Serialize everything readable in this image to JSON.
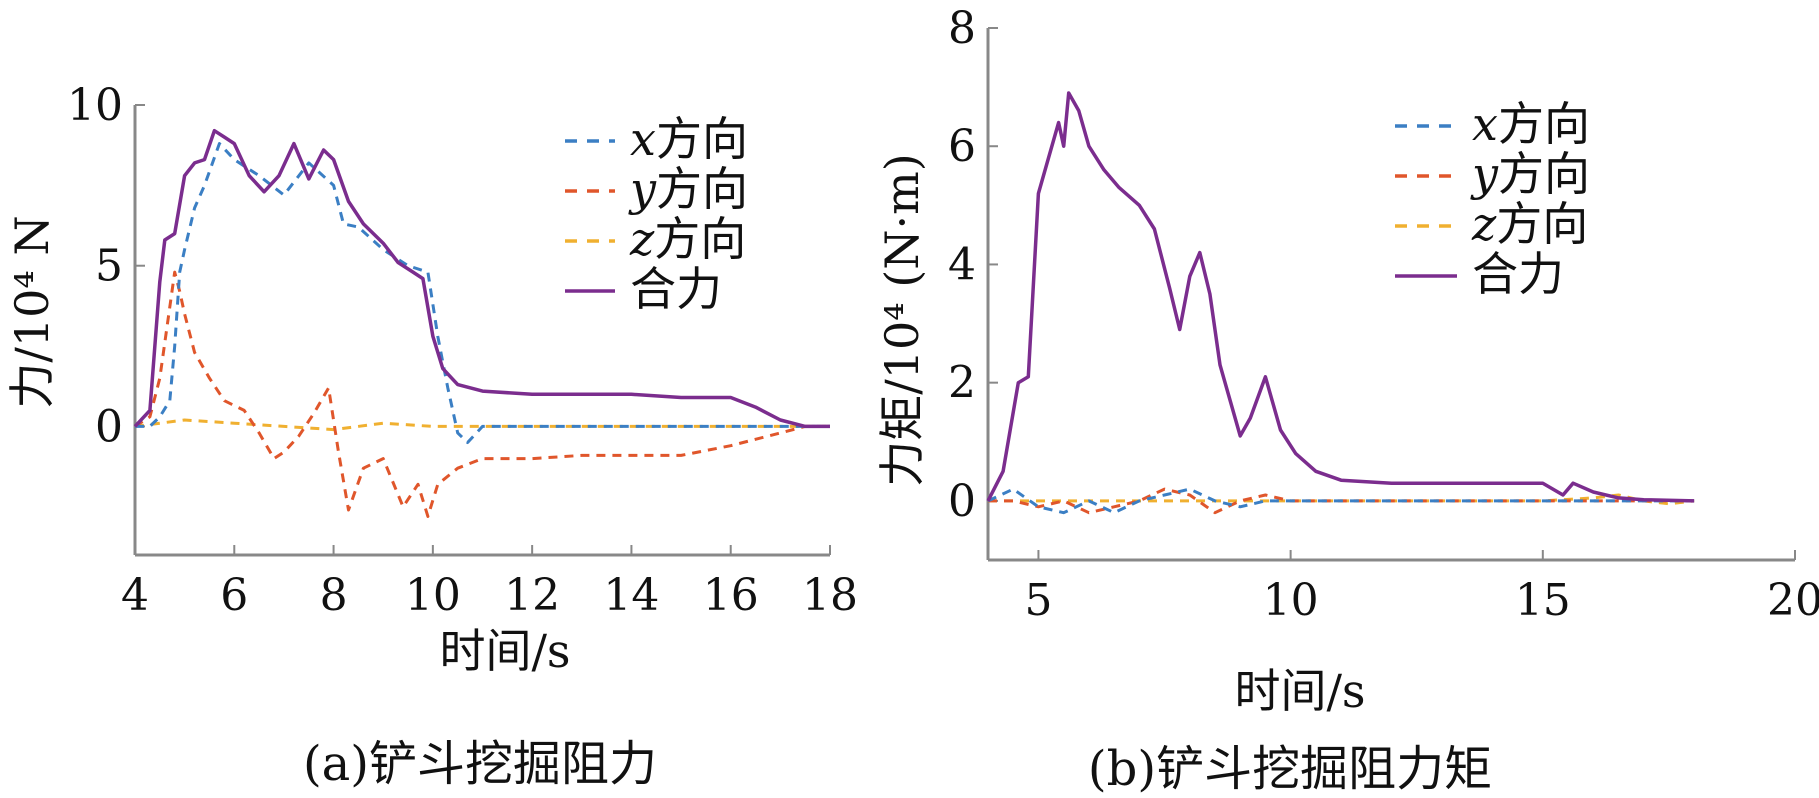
{
  "chart_data": [
    {
      "type": "line",
      "caption": "(a)铲斗挖掘阻力",
      "xlabel": "时间/s",
      "ylabel": "力/10⁴ N",
      "xlim": [
        4,
        18
      ],
      "ylim": [
        -4,
        10
      ],
      "xticks": [
        4,
        6,
        8,
        10,
        12,
        14,
        16,
        18
      ],
      "yticks": [
        0,
        5,
        10
      ],
      "grid": false,
      "legend_position": "top-right",
      "colors": {
        "x": "#3b7fc4",
        "y": "#e0562b",
        "z": "#f0b030",
        "total": "#7b2d8e"
      },
      "series": [
        {
          "name": "x方向",
          "style": "dashed",
          "x": [
            4,
            4.3,
            4.5,
            4.7,
            4.8,
            4.9,
            5.0,
            5.2,
            5.4,
            5.7,
            6.0,
            6.5,
            7.0,
            7.5,
            8.0,
            8.2,
            8.5,
            9.0,
            9.5,
            9.9,
            10.1,
            10.3,
            10.5,
            10.7,
            11,
            12,
            13,
            14,
            15,
            16,
            17,
            17.5,
            18
          ],
          "y": [
            0,
            0,
            0.3,
            0.8,
            2.5,
            4.8,
            5.5,
            6.8,
            7.5,
            8.8,
            8.3,
            7.8,
            7.2,
            8.2,
            7.5,
            6.3,
            6.2,
            5.5,
            5.0,
            4.8,
            2.8,
            1.2,
            -0.2,
            -0.5,
            0,
            0,
            0,
            0,
            0,
            0,
            0,
            0,
            0
          ]
        },
        {
          "name": "y方向",
          "style": "dashed",
          "x": [
            4,
            4.3,
            4.5,
            4.8,
            4.9,
            5.0,
            5.2,
            5.5,
            5.8,
            6.2,
            6.5,
            6.8,
            7.0,
            7.3,
            7.6,
            7.9,
            8.1,
            8.3,
            8.6,
            9.0,
            9.4,
            9.7,
            9.9,
            10.1,
            10.5,
            11,
            12,
            13,
            14,
            15,
            16,
            16.5,
            17,
            17.5,
            18
          ],
          "y": [
            0,
            0.3,
            1.5,
            4.8,
            4.2,
            3.5,
            2.3,
            1.5,
            0.8,
            0.5,
            -0.2,
            -1.0,
            -0.8,
            -0.3,
            0.4,
            1.2,
            -0.8,
            -2.6,
            -1.3,
            -1.0,
            -2.5,
            -1.8,
            -2.8,
            -1.8,
            -1.3,
            -1.0,
            -1.0,
            -0.9,
            -0.9,
            -0.9,
            -0.6,
            -0.4,
            -0.2,
            0,
            0
          ]
        },
        {
          "name": "z方向",
          "style": "dashed",
          "x": [
            4,
            4.5,
            5,
            6,
            7,
            8,
            9,
            10,
            11,
            12,
            13,
            14,
            15,
            16,
            17,
            17.5,
            18
          ],
          "y": [
            0,
            0.1,
            0.2,
            0.1,
            0.0,
            -0.1,
            0.1,
            0.0,
            0.0,
            0.0,
            0.0,
            0.0,
            0.0,
            0.0,
            0.0,
            0.0,
            0.0
          ]
        },
        {
          "name": "合力",
          "style": "solid",
          "x": [
            4,
            4.3,
            4.5,
            4.6,
            4.8,
            5.0,
            5.2,
            5.4,
            5.6,
            5.8,
            6.0,
            6.3,
            6.6,
            6.9,
            7.2,
            7.5,
            7.8,
            8.0,
            8.3,
            8.6,
            9.0,
            9.3,
            9.6,
            9.8,
            10.0,
            10.2,
            10.5,
            11,
            12,
            13,
            14,
            15,
            16,
            16.5,
            17,
            17.5,
            18
          ],
          "y": [
            0,
            0.5,
            4.5,
            5.8,
            6.0,
            7.8,
            8.2,
            8.3,
            9.2,
            9.0,
            8.8,
            7.8,
            7.3,
            7.8,
            8.8,
            7.7,
            8.6,
            8.3,
            7.0,
            6.3,
            5.7,
            5.1,
            4.8,
            4.6,
            2.8,
            1.8,
            1.3,
            1.1,
            1.0,
            1.0,
            1.0,
            0.9,
            0.9,
            0.6,
            0.2,
            0.0,
            0.0
          ]
        }
      ]
    },
    {
      "type": "line",
      "caption": "(b)铲斗挖掘阻力矩",
      "xlabel": "时间/s",
      "ylabel": "力矩/10⁴ (N·m)",
      "xlim": [
        4,
        20
      ],
      "ylim": [
        -1,
        8
      ],
      "xticks": [
        5,
        10,
        15,
        20
      ],
      "yticks": [
        0,
        2,
        4,
        6,
        8
      ],
      "grid": false,
      "legend_position": "top-right",
      "colors": {
        "x": "#3b7fc4",
        "y": "#e0562b",
        "z": "#f0b030",
        "total": "#7b2d8e"
      },
      "series": [
        {
          "name": "x方向",
          "style": "dashed",
          "x": [
            4,
            4.5,
            5,
            5.5,
            6,
            6.5,
            7,
            7.5,
            8,
            8.5,
            9,
            9.5,
            10,
            11,
            12,
            13,
            14,
            15,
            16,
            17,
            18
          ],
          "y": [
            0,
            0.2,
            -0.1,
            -0.2,
            0.0,
            -0.2,
            0.0,
            0.1,
            0.2,
            0.0,
            -0.1,
            0.0,
            0.0,
            0,
            0,
            0,
            0,
            0,
            0,
            0,
            0
          ]
        },
        {
          "name": "y方向",
          "style": "dashed",
          "x": [
            4,
            4.5,
            5,
            5.5,
            6,
            6.5,
            7,
            7.5,
            8,
            8.5,
            9,
            9.5,
            10,
            11,
            12,
            13,
            14,
            15,
            16,
            17,
            18
          ],
          "y": [
            0,
            0.0,
            -0.1,
            0.0,
            -0.2,
            -0.1,
            0.0,
            0.2,
            0.1,
            -0.2,
            0.0,
            0.1,
            0.0,
            0,
            0,
            0,
            0,
            0,
            0,
            0,
            0
          ]
        },
        {
          "name": "z方向",
          "style": "dashed",
          "x": [
            4,
            6,
            8,
            10,
            12,
            14,
            15,
            16,
            16.5,
            17,
            17.5,
            18
          ],
          "y": [
            0,
            0,
            0,
            0,
            0,
            0,
            0,
            0.05,
            0.1,
            0.0,
            -0.05,
            0
          ]
        },
        {
          "name": "合力",
          "style": "solid",
          "x": [
            4,
            4.3,
            4.6,
            4.8,
            5.0,
            5.2,
            5.4,
            5.5,
            5.6,
            5.8,
            6.0,
            6.3,
            6.6,
            7.0,
            7.3,
            7.6,
            7.8,
            8.0,
            8.2,
            8.4,
            8.6,
            9.0,
            9.2,
            9.5,
            9.8,
            10.1,
            10.5,
            11,
            12,
            13,
            14,
            15,
            15.4,
            15.6,
            16,
            16.5,
            17,
            18
          ],
          "y": [
            0,
            0.5,
            2.0,
            2.1,
            5.2,
            5.8,
            6.4,
            6.0,
            6.9,
            6.6,
            6.0,
            5.6,
            5.3,
            5.0,
            4.6,
            3.6,
            2.9,
            3.8,
            4.2,
            3.5,
            2.3,
            1.1,
            1.4,
            2.1,
            1.2,
            0.8,
            0.5,
            0.35,
            0.3,
            0.3,
            0.3,
            0.3,
            0.1,
            0.3,
            0.15,
            0.05,
            0.02,
            0.0
          ]
        }
      ]
    }
  ]
}
